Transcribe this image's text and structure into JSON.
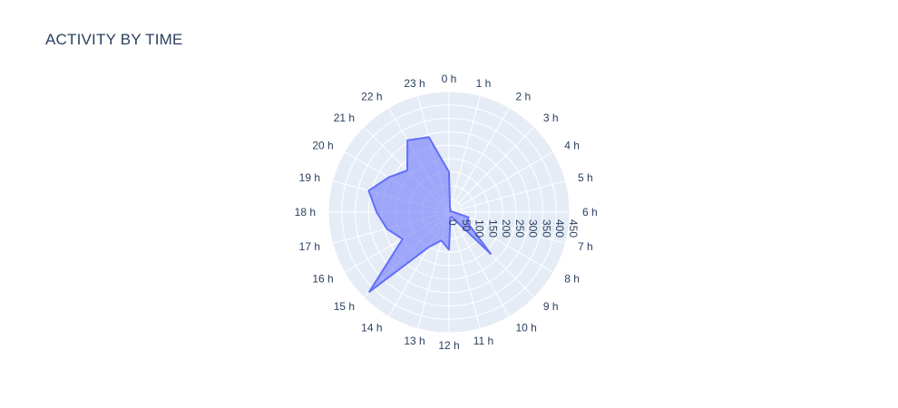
{
  "title": "ACTIVITY BY TIME",
  "chart_data": {
    "type": "area",
    "subtype": "polar",
    "title": "ACTIVITY BY TIME",
    "theta_labels": [
      "0 h",
      "1 h",
      "2 h",
      "3 h",
      "4 h",
      "5 h",
      "6 h",
      "7 h",
      "8 h",
      "9 h",
      "10 h",
      "11 h",
      "12 h",
      "13 h",
      "14 h",
      "15 h",
      "16 h",
      "17 h",
      "18 h",
      "19 h",
      "20 h",
      "21 h",
      "22 h",
      "23 h"
    ],
    "r_values": [
      150,
      15,
      12,
      8,
      5,
      10,
      18,
      75,
      80,
      220,
      20,
      20,
      140,
      110,
      150,
      420,
      200,
      240,
      270,
      310,
      260,
      220,
      310,
      290
    ],
    "radial_tick_labels": [
      "0",
      "50",
      "100",
      "150",
      "200",
      "250",
      "300",
      "350",
      "400",
      "450"
    ],
    "radial_range": [
      0,
      450
    ],
    "fill_color": "rgba(99,110,250,0.55)",
    "line_color": "#636efa",
    "background_color": "#e5ecf6",
    "grid_color": "#ffffff",
    "grid": true,
    "clockwise": true,
    "rotation_start": "top"
  }
}
